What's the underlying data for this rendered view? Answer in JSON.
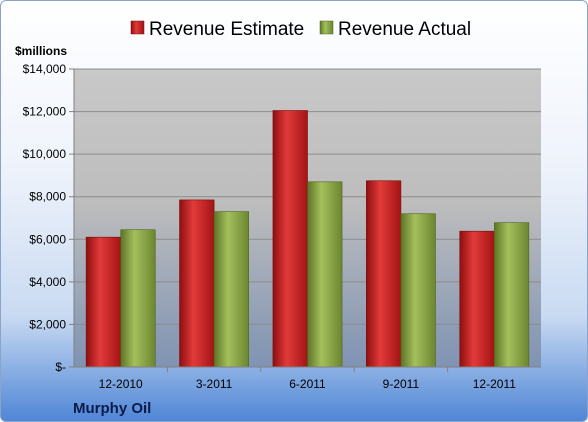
{
  "chart_data": {
    "type": "bar",
    "categories": [
      "12-2010",
      "3-2011",
      "6-2011",
      "9-2011",
      "12-2011"
    ],
    "series": [
      {
        "name": "Revenue Estimate",
        "values": [
          6100,
          7850,
          12050,
          8750,
          6380
        ],
        "color": "#cc1f1f"
      },
      {
        "name": "Revenue Actual",
        "values": [
          6450,
          7300,
          8700,
          7200,
          6780
        ],
        "color": "#86a33c"
      }
    ],
    "ylabel": "$millions",
    "ylim": [
      0,
      14000
    ],
    "yticks": [
      0,
      2000,
      4000,
      6000,
      8000,
      10000,
      12000,
      14000
    ],
    "ytick_labels": [
      "$-",
      "$2,000",
      "$4,000",
      "$6,000",
      "$8,000",
      "$10,000",
      "$12,000",
      "$14,000"
    ],
    "grid": true,
    "legend_position": "top"
  },
  "company": "Murphy Oil"
}
